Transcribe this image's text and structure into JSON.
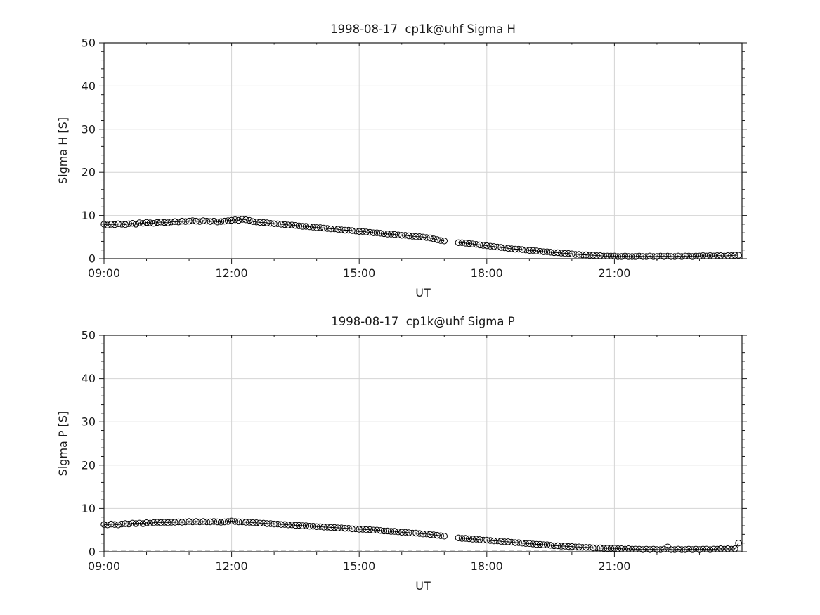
{
  "style": {
    "figure_background": "#ffffff",
    "grid_color": "#d4d4d4",
    "axis_color": "#1a1a1a",
    "text_color": "#1a1a1a",
    "marker_color": "#000000",
    "dashed_line_color": "#999999"
  },
  "chart_data": [
    {
      "type": "scatter",
      "title": "1998-08-17  cp1k@uhf Sigma H",
      "xlabel": "UT",
      "ylabel": "Sigma H [S]",
      "xlim_minutes": [
        540,
        1440
      ],
      "ylim": [
        0,
        50
      ],
      "xticks": {
        "values": [
          540,
          720,
          900,
          1080,
          1260
        ],
        "labels": [
          "09:00",
          "12:00",
          "15:00",
          "18:00",
          "21:00"
        ]
      },
      "yticks": [
        0,
        10,
        20,
        30,
        40,
        50
      ],
      "x_minor_step": 60,
      "y_minor_step": 2,
      "grid": true,
      "dashed_zero_line": false,
      "series": [
        {
          "name": "Sigma H",
          "marker": "circle-open",
          "color": "#000000",
          "t_start_minutes": 540,
          "t_step_minutes": 5,
          "values": [
            8.0,
            7.8,
            8.0,
            7.9,
            8.1,
            8.0,
            7.9,
            8.1,
            8.2,
            8.0,
            8.3,
            8.2,
            8.4,
            8.3,
            8.2,
            8.4,
            8.5,
            8.4,
            8.3,
            8.5,
            8.6,
            8.5,
            8.7,
            8.6,
            8.7,
            8.8,
            8.7,
            8.6,
            8.8,
            8.7,
            8.6,
            8.7,
            8.5,
            8.6,
            8.7,
            8.8,
            8.9,
            9.0,
            8.9,
            9.1,
            9.0,
            8.9,
            8.6,
            8.5,
            8.4,
            8.4,
            8.3,
            8.2,
            8.1,
            8.1,
            8.0,
            7.9,
            7.8,
            7.8,
            7.7,
            7.6,
            7.5,
            7.5,
            7.4,
            7.3,
            7.2,
            7.2,
            7.1,
            7.0,
            6.9,
            6.9,
            6.8,
            6.7,
            6.6,
            6.6,
            6.5,
            6.4,
            6.3,
            6.3,
            6.2,
            6.1,
            6.0,
            6.0,
            5.9,
            5.8,
            5.7,
            5.7,
            5.6,
            5.5,
            5.4,
            5.4,
            5.3,
            5.2,
            5.1,
            5.1,
            5.0,
            4.9,
            4.8,
            4.6,
            4.4,
            4.2,
            4.1,
            null,
            null,
            null,
            3.7,
            3.7,
            3.6,
            3.5,
            3.4,
            3.3,
            3.2,
            3.1,
            3.0,
            2.9,
            2.8,
            2.7,
            2.6,
            2.5,
            2.4,
            2.3,
            2.2,
            2.2,
            2.1,
            2.0,
            1.9,
            1.9,
            1.8,
            1.7,
            1.6,
            1.6,
            1.5,
            1.4,
            1.4,
            1.3,
            1.2,
            1.2,
            1.1,
            1.0,
            1.0,
            0.9,
            0.9,
            0.8,
            0.8,
            0.7,
            0.7,
            0.6,
            0.6,
            0.6,
            0.6,
            0.5,
            0.5,
            0.6,
            0.5,
            0.5,
            0.5,
            0.6,
            0.5,
            0.5,
            0.6,
            0.5,
            0.5,
            0.6,
            0.5,
            0.6,
            0.5,
            0.5,
            0.6,
            0.5,
            0.6,
            0.6,
            0.5,
            0.6,
            0.6,
            0.7,
            0.6,
            0.7,
            0.6,
            0.7,
            0.7,
            0.6,
            0.7,
            0.7,
            0.8,
            0.8
          ]
        }
      ]
    },
    {
      "type": "scatter",
      "title": "1998-08-17  cp1k@uhf Sigma P",
      "xlabel": "UT",
      "ylabel": "Sigma P [S]",
      "xlim_minutes": [
        540,
        1440
      ],
      "ylim": [
        0,
        50
      ],
      "xticks": {
        "values": [
          540,
          720,
          900,
          1080,
          1260
        ],
        "labels": [
          "09:00",
          "12:00",
          "15:00",
          "18:00",
          "21:00"
        ]
      },
      "yticks": [
        0,
        10,
        20,
        30,
        40,
        50
      ],
      "x_minor_step": 60,
      "y_minor_step": 2,
      "grid": true,
      "dashed_zero_line": true,
      "series": [
        {
          "name": "Sigma P",
          "marker": "circle-open",
          "color": "#000000",
          "t_start_minutes": 540,
          "t_step_minutes": 5,
          "values": [
            6.3,
            6.2,
            6.4,
            6.3,
            6.2,
            6.4,
            6.5,
            6.4,
            6.6,
            6.5,
            6.6,
            6.5,
            6.7,
            6.6,
            6.7,
            6.8,
            6.7,
            6.8,
            6.7,
            6.8,
            6.8,
            6.9,
            6.8,
            6.9,
            7.0,
            6.9,
            7.0,
            6.9,
            7.0,
            6.9,
            6.9,
            7.0,
            6.9,
            6.8,
            6.9,
            7.0,
            7.1,
            7.0,
            6.9,
            6.9,
            6.8,
            6.8,
            6.7,
            6.7,
            6.6,
            6.6,
            6.5,
            6.5,
            6.4,
            6.4,
            6.3,
            6.3,
            6.2,
            6.2,
            6.1,
            6.1,
            6.0,
            6.0,
            5.9,
            5.9,
            5.8,
            5.8,
            5.7,
            5.7,
            5.6,
            5.6,
            5.5,
            5.5,
            5.4,
            5.4,
            5.3,
            5.3,
            5.2,
            5.2,
            5.1,
            5.1,
            5.0,
            5.0,
            4.9,
            4.8,
            4.8,
            4.7,
            4.7,
            4.6,
            4.5,
            4.5,
            4.4,
            4.3,
            4.3,
            4.2,
            4.1,
            4.1,
            4.0,
            3.9,
            3.8,
            3.7,
            3.6,
            null,
            null,
            null,
            3.2,
            3.1,
            3.1,
            3.0,
            2.9,
            2.9,
            2.8,
            2.7,
            2.7,
            2.6,
            2.5,
            2.5,
            2.4,
            2.3,
            2.3,
            2.2,
            2.1,
            2.1,
            2.0,
            1.9,
            1.9,
            1.8,
            1.7,
            1.7,
            1.6,
            1.6,
            1.5,
            1.4,
            1.4,
            1.3,
            1.3,
            1.2,
            1.2,
            1.1,
            1.1,
            1.0,
            1.0,
            1.0,
            0.9,
            0.9,
            0.9,
            0.8,
            0.8,
            0.8,
            0.8,
            0.7,
            0.7,
            0.6,
            0.7,
            0.6,
            0.6,
            0.6,
            0.5,
            0.6,
            0.5,
            0.6,
            0.5,
            0.5,
            0.6,
            1.1,
            0.5,
            0.5,
            0.6,
            0.5,
            0.5,
            0.6,
            0.5,
            0.6,
            0.5,
            0.6,
            0.6,
            0.5,
            0.6,
            0.6,
            0.7,
            0.6,
            0.7,
            0.6,
            0.7,
            2.0
          ]
        }
      ]
    }
  ]
}
